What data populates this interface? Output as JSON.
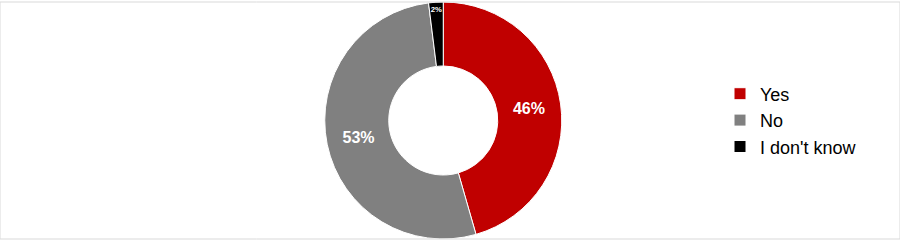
{
  "chart_data": {
    "type": "donut",
    "categories": [
      "Yes",
      "No",
      "I don't know"
    ],
    "values": [
      46,
      53,
      2
    ],
    "value_labels": [
      "46%",
      "53%",
      "2%"
    ],
    "colors": [
      "#c00000",
      "#808080",
      "#000000"
    ],
    "data_labels": true,
    "legend": "right"
  }
}
